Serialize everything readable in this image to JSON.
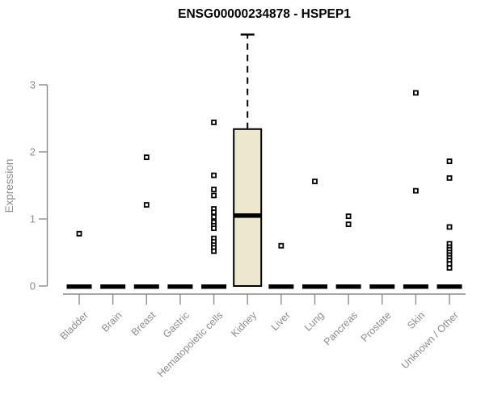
{
  "chart_data": {
    "type": "boxplot",
    "title": "ENSG00000234878 - HSPEP1",
    "ylabel": "Expression",
    "xlabel": "",
    "ylim": [
      0,
      3
    ],
    "yticks": [
      0,
      1,
      2,
      3
    ],
    "grid": false,
    "legend": false,
    "categories": [
      "Bladder",
      "Brain",
      "Breast",
      "Gastric",
      "Hematopoietic cells",
      "Kidney",
      "Liver",
      "Lung",
      "Pancreas",
      "Prostate",
      "Skin",
      "Unknown / Other"
    ],
    "boxes": [
      {
        "category": "Bladder",
        "q1": 0,
        "median": 0,
        "q3": 0,
        "whisker_low": 0,
        "whisker_high": 0,
        "outliers": [
          0.78
        ]
      },
      {
        "category": "Brain",
        "q1": 0,
        "median": 0,
        "q3": 0,
        "whisker_low": 0,
        "whisker_high": 0,
        "outliers": []
      },
      {
        "category": "Breast",
        "q1": 0,
        "median": 0,
        "q3": 0,
        "whisker_low": 0,
        "whisker_high": 0,
        "outliers": [
          1.92,
          1.21
        ]
      },
      {
        "category": "Gastric",
        "q1": 0,
        "median": 0,
        "q3": 0,
        "whisker_low": 0,
        "whisker_high": 0,
        "outliers": []
      },
      {
        "category": "Hematopoietic cells",
        "q1": 0,
        "median": 0,
        "q3": 0,
        "whisker_low": 0,
        "whisker_high": 0,
        "outliers": [
          2.44,
          1.65,
          1.44,
          1.35,
          1.15,
          1.1,
          1.03,
          0.95,
          0.9,
          0.86,
          0.71,
          0.66,
          0.61,
          0.57,
          0.52
        ]
      },
      {
        "category": "Kidney",
        "q1": 0,
        "median": 1.05,
        "q3": 2.34,
        "whisker_low": 0,
        "whisker_high": 3.75,
        "outliers": []
      },
      {
        "category": "Liver",
        "q1": 0,
        "median": 0,
        "q3": 0,
        "whisker_low": 0,
        "whisker_high": 0,
        "outliers": [
          0.6
        ]
      },
      {
        "category": "Lung",
        "q1": 0,
        "median": 0,
        "q3": 0,
        "whisker_low": 0,
        "whisker_high": 0,
        "outliers": [
          1.56
        ]
      },
      {
        "category": "Pancreas",
        "q1": 0,
        "median": 0,
        "q3": 0,
        "whisker_low": 0,
        "whisker_high": 0,
        "outliers": [
          1.04,
          0.92
        ]
      },
      {
        "category": "Prostate",
        "q1": 0,
        "median": 0,
        "q3": 0,
        "whisker_low": 0,
        "whisker_high": 0,
        "outliers": []
      },
      {
        "category": "Skin",
        "q1": 0,
        "median": 0,
        "q3": 0,
        "whisker_low": 0,
        "whisker_high": 0,
        "outliers": [
          2.88,
          1.42
        ]
      },
      {
        "category": "Unknown / Other",
        "q1": 0,
        "median": 0,
        "q3": 0,
        "whisker_low": 0,
        "whisker_high": 0,
        "outliers": [
          1.86,
          1.61,
          0.88,
          0.63,
          0.58,
          0.54,
          0.5,
          0.46,
          0.42,
          0.38,
          0.33,
          0.27
        ]
      }
    ],
    "colors": {
      "box_fill": "#ece8cd",
      "box_border": "#000000",
      "median": "#000000",
      "outlier": "#000000",
      "axis": "#8c8c8c",
      "tick_label": "#8c8c8c",
      "title": "#000000",
      "background": "#ffffff"
    }
  }
}
